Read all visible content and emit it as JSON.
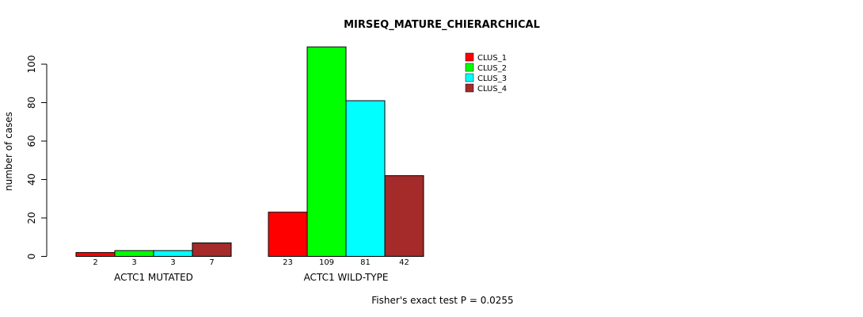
{
  "chart_data": {
    "type": "bar",
    "title": "MIRSEQ_MATURE_CHIERARCHICAL",
    "xlabel": "",
    "ylabel": "number of cases",
    "ylim": [
      0,
      100
    ],
    "yticks": [
      0,
      20,
      40,
      60,
      80,
      100
    ],
    "groups": [
      "ACTC1 MUTATED",
      "ACTC1 WILD-TYPE"
    ],
    "series": [
      {
        "name": "CLUS_1",
        "color": "#ff0000",
        "values": [
          2,
          23
        ]
      },
      {
        "name": "CLUS_2",
        "color": "#00ff00",
        "values": [
          3,
          109
        ]
      },
      {
        "name": "CLUS_3",
        "color": "#00ffff",
        "values": [
          3,
          81
        ]
      },
      {
        "name": "CLUS_4",
        "color": "#a52a2a",
        "values": [
          7,
          42
        ]
      }
    ],
    "legend_position": "top-right",
    "footnote": "Fisher's exact test P = 0.0255"
  }
}
